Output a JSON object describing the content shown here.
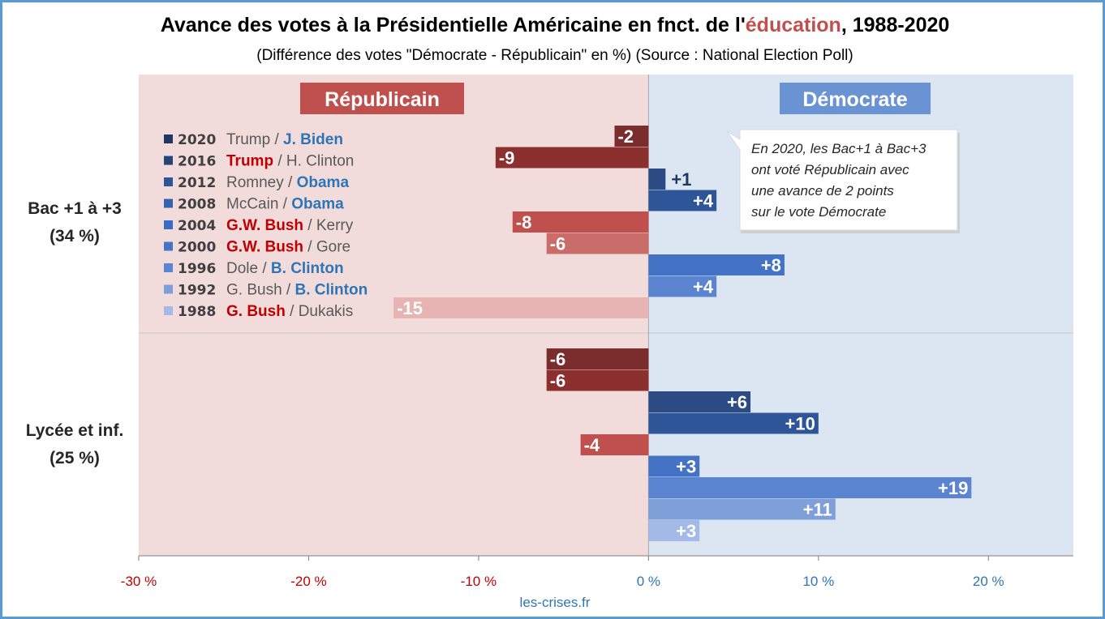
{
  "title": {
    "prefix": "Avance des votes à la Présidentielle Américaine en fnct. de l'",
    "highlight": "éducation",
    "suffix": ", 1988-2020"
  },
  "subtitle": "(Différence des votes \"Démocrate - Républicain\" en %) (Source : National Election Poll)",
  "footer": "les-crises.fr",
  "colors": {
    "rep_bg": "#f2dcdb",
    "dem_bg": "#dce6f2",
    "rep_label_bg": "#c0504d",
    "dem_label_bg": "#6a93d4",
    "rep_text": "#c00000",
    "dem_text": "#2e75b6",
    "neg_tick": "#c00000",
    "pos_tick": "#2e75b6",
    "rep_bars": [
      "#7b2c2c",
      "#8b2f2f",
      "#c0504d",
      "#c96c6a",
      "#e7b4b3"
    ],
    "dem_bars": [
      "#2c4b85",
      "#2e5597",
      "#4472c4",
      "#5b85d0",
      "#7f9fd9",
      "#a3bae6"
    ]
  },
  "chart_data": {
    "type": "bar",
    "orientation": "horizontal",
    "xlim": [
      -30,
      25
    ],
    "xticks": [
      -30,
      -20,
      -10,
      0,
      10,
      20
    ],
    "xtick_labels": [
      "-30 %",
      "-20 %",
      "-10 %",
      "0 %",
      "10 %",
      "20 %"
    ],
    "side_labels": {
      "left": "Républicain",
      "right": "Démocrate"
    },
    "years": [
      "2020",
      "2016",
      "2012",
      "2008",
      "2004",
      "2000",
      "1996",
      "1992",
      "1988"
    ],
    "legend": [
      {
        "year": "2020",
        "rep": "Trump",
        "dem": "J. Biden",
        "winner": "dem",
        "swatch": "#1f3864"
      },
      {
        "year": "2016",
        "rep": "Trump",
        "dem": "H. Clinton",
        "winner": "rep",
        "swatch": "#264478"
      },
      {
        "year": "2012",
        "rep": "Romney",
        "dem": "Obama",
        "winner": "dem",
        "swatch": "#2e5597"
      },
      {
        "year": "2008",
        "rep": "McCain",
        "dem": "Obama",
        "winner": "dem",
        "swatch": "#3562ad"
      },
      {
        "year": "2004",
        "rep": "G.W. Bush",
        "dem": "Kerry",
        "winner": "rep",
        "swatch": "#3b6cc0"
      },
      {
        "year": "2000",
        "rep": "G.W. Bush",
        "dem": "Gore",
        "winner": "rep",
        "swatch": "#4472c4"
      },
      {
        "year": "1996",
        "rep": "Dole",
        "dem": "B. Clinton",
        "winner": "dem",
        "swatch": "#5b85d0"
      },
      {
        "year": "1992",
        "rep": "G. Bush",
        "dem": "B. Clinton",
        "winner": "dem",
        "swatch": "#7f9fd9"
      },
      {
        "year": "1988",
        "rep": "G. Bush",
        "dem": "Dukakis",
        "winner": "rep",
        "swatch": "#a3bae6"
      }
    ],
    "groups": [
      {
        "name": "Bac +1 à +3",
        "share": "(34 %)",
        "values": [
          -2,
          -9,
          1,
          4,
          -8,
          -6,
          8,
          4,
          -15
        ],
        "labels": [
          "-2",
          "-9",
          "+1",
          "+4",
          "-8",
          "-6",
          "+8",
          "+4",
          "-15"
        ]
      },
      {
        "name": "Lycée et inf.",
        "share": "(25 %)",
        "values": [
          -6,
          -6,
          6,
          10,
          -4,
          3,
          19,
          11,
          3
        ],
        "labels": [
          "-6",
          "-6",
          "+6",
          "+10",
          "-4",
          "+3",
          "+19",
          "+11",
          "+3"
        ]
      }
    ],
    "annotation": [
      "En 2020, les Bac+1 à Bac+3",
      "ont voté Républicain avec",
      "une avance de 2 points",
      "sur le vote Démocrate"
    ]
  }
}
